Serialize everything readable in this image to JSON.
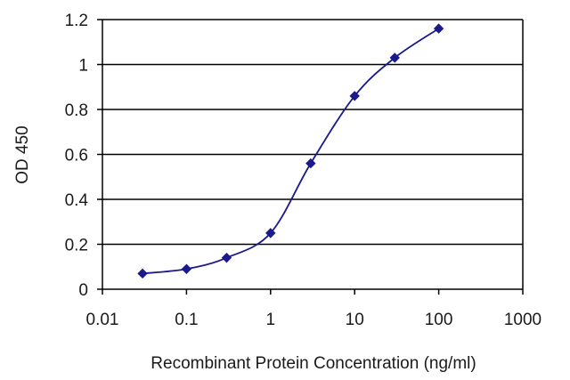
{
  "chart_data": {
    "type": "line",
    "title": "",
    "xlabel": "Recombinant Protein Concentration (ng/ml)",
    "ylabel": "OD 450",
    "x_scale": "log",
    "xlim": [
      0.01,
      1000
    ],
    "ylim": [
      0,
      1.2
    ],
    "x_tick_labels": [
      "0.01",
      "0.1",
      "1",
      "10",
      "100",
      "1000"
    ],
    "y_tick_labels": [
      "0",
      "0.2",
      "0.4",
      "0.6",
      "0.8",
      "1",
      "1.2"
    ],
    "grid": "horizontal",
    "legend": "none",
    "series": [
      {
        "x": [
          0.03,
          0.1,
          0.3,
          1,
          3,
          10,
          30,
          100
        ],
        "y": [
          0.07,
          0.09,
          0.14,
          0.25,
          0.56,
          0.86,
          1.03,
          1.16
        ]
      }
    ],
    "colors": {
      "series": "#1a1a8c",
      "grid": "#000000",
      "axis": "#000000"
    }
  }
}
